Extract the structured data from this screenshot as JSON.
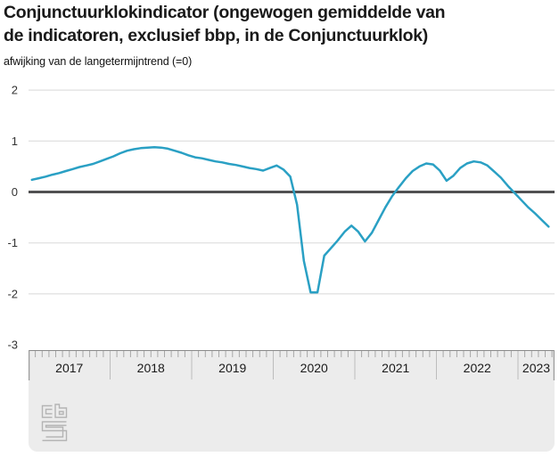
{
  "header": {
    "title": "Conjunctuurklokindicator (ongewogen gemiddelde van\nde indicatoren, exclusief bbp, in de Conjunctuurklok)",
    "subtitle": "afwijking van de langetermijntrend (=0)"
  },
  "chart_data": {
    "type": "line",
    "title": "Conjunctuurklokindicator (ongewogen gemiddelde van de indicatoren, exclusief bbp, in de Conjunctuurklok)",
    "ylabel": "afwijking van de langetermijntrend (=0)",
    "ylim": [
      -3,
      2
    ],
    "yticks": [
      2,
      1,
      0,
      -1,
      -2,
      -3
    ],
    "zero_line": true,
    "grid": true,
    "legend": "none",
    "x_unit": "month",
    "x_start": "2017-01",
    "x_end": "2023-05",
    "categories": [
      "2017",
      "2018",
      "2019",
      "2020",
      "2021",
      "2022",
      "2023"
    ],
    "series": [
      {
        "name": "Conjunctuurklokindicator",
        "color": "#2aa0c4",
        "values": [
          0.24,
          0.27,
          0.3,
          0.34,
          0.37,
          0.41,
          0.45,
          0.49,
          0.52,
          0.55,
          0.6,
          0.65,
          0.7,
          0.76,
          0.81,
          0.84,
          0.86,
          0.87,
          0.88,
          0.87,
          0.85,
          0.81,
          0.77,
          0.72,
          0.68,
          0.66,
          0.63,
          0.6,
          0.58,
          0.55,
          0.53,
          0.5,
          0.47,
          0.45,
          0.42,
          0.47,
          0.52,
          0.44,
          0.3,
          -0.25,
          -1.35,
          -1.97,
          -1.97,
          -1.25,
          -1.1,
          -0.95,
          -0.78,
          -0.66,
          -0.78,
          -0.97,
          -0.8,
          -0.55,
          -0.3,
          -0.08,
          0.1,
          0.27,
          0.41,
          0.5,
          0.56,
          0.54,
          0.42,
          0.22,
          0.32,
          0.47,
          0.56,
          0.6,
          0.58,
          0.52,
          0.4,
          0.28,
          0.12,
          -0.02,
          -0.16,
          -0.3,
          -0.42,
          -0.55,
          -0.68
        ]
      }
    ]
  },
  "slider": {
    "years": [
      "2017",
      "2018",
      "2019",
      "2020",
      "2021",
      "2022",
      "2023"
    ]
  },
  "branding": {
    "logo": "cbs-logo"
  },
  "colors": {
    "line": "#2aa0c4",
    "zero_line": "#505052",
    "grid": "#d8d8d8",
    "panel": "#ececec",
    "tick": "#a8a8a8",
    "year_separator": "#bdbdbd",
    "logo": "#b4b4b4",
    "title_text": "#1a1a1a"
  }
}
